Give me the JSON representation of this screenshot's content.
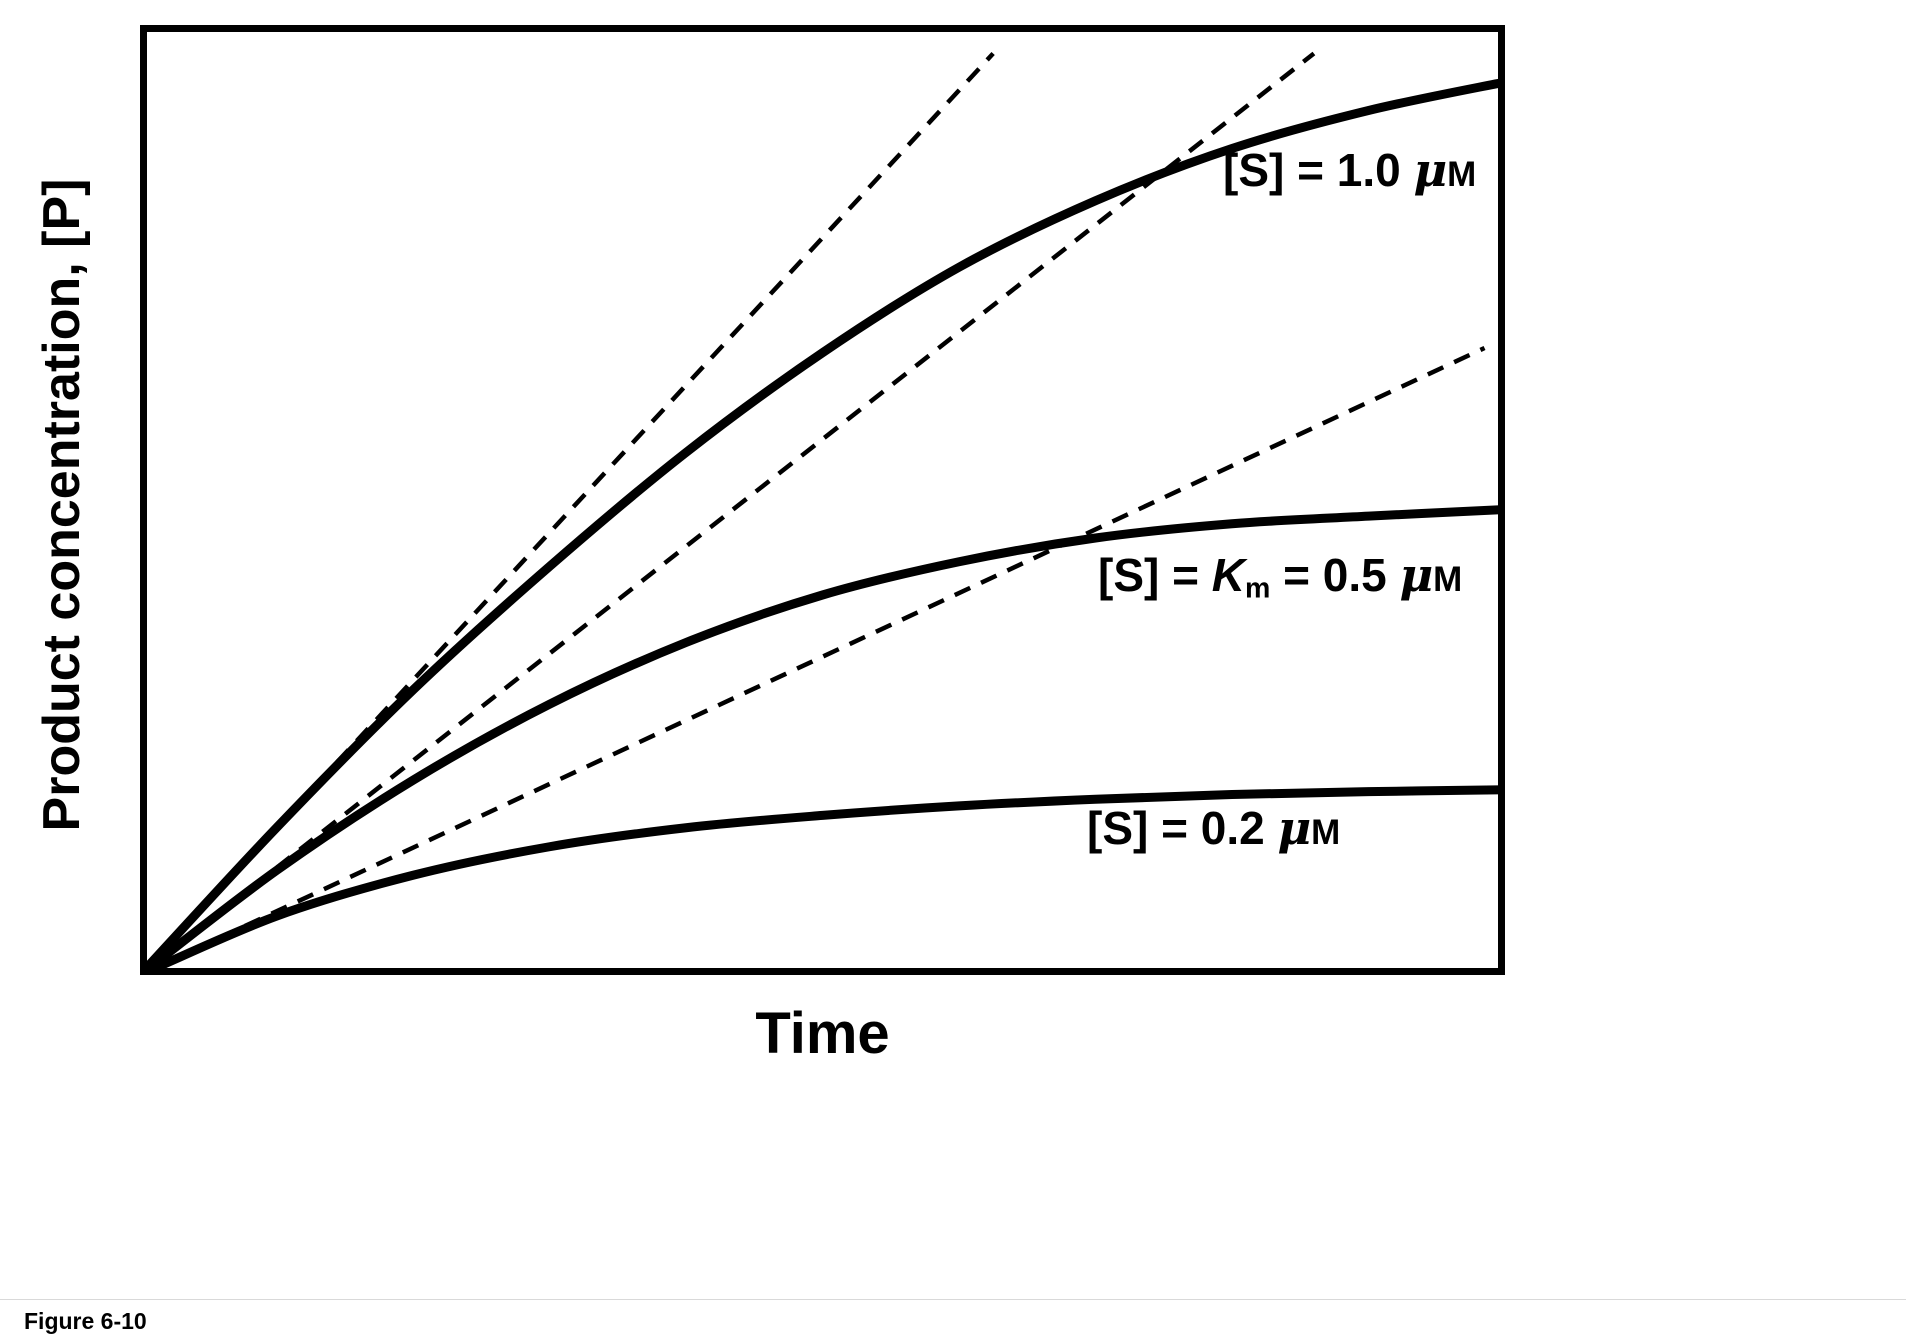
{
  "figure": {
    "caption": "Figure 6-10"
  },
  "colors": {
    "line": "#000000",
    "background": "#ffffff"
  },
  "chart_data": {
    "type": "line",
    "title": "",
    "xlabel": "Time",
    "ylabel": "Product concentration, [P]",
    "x_range": [
      0,
      1
    ],
    "y_range": [
      0,
      1
    ],
    "grid": false,
    "ticks": "none (no numeric tick labels on either axis)",
    "frame": "full rectangular box, thick black border",
    "legend_position": "none (labels annotated next to curves)",
    "series": [
      {
        "name": "progress curve [S] = 1.0 uM",
        "line_style": "solid",
        "x": [
          0,
          0.1,
          0.2,
          0.3,
          0.4,
          0.5,
          0.6,
          0.7,
          0.8,
          0.9,
          1.0
        ],
        "y": [
          0,
          0.155,
          0.3,
          0.43,
          0.55,
          0.655,
          0.745,
          0.815,
          0.87,
          0.91,
          0.94
        ]
      },
      {
        "name": "progress curve [S] = Km = 0.5 uM",
        "line_style": "solid",
        "x": [
          0,
          0.1,
          0.2,
          0.3,
          0.4,
          0.5,
          0.6,
          0.7,
          0.8,
          0.9,
          1.0
        ],
        "y": [
          0,
          0.11,
          0.205,
          0.285,
          0.35,
          0.4,
          0.435,
          0.46,
          0.475,
          0.483,
          0.49
        ]
      },
      {
        "name": "progress curve [S] = 0.2 uM",
        "line_style": "solid",
        "x": [
          0,
          0.1,
          0.2,
          0.3,
          0.4,
          0.5,
          0.6,
          0.7,
          0.8,
          0.9,
          1.0
        ],
        "y": [
          0,
          0.062,
          0.105,
          0.135,
          0.155,
          0.168,
          0.178,
          0.185,
          0.19,
          0.193,
          0.195
        ]
      },
      {
        "name": "initial-rate tangent for [S] = 1.0 uM",
        "line_style": "dashed",
        "x": [
          0,
          0.625
        ],
        "y": [
          0,
          0.97
        ]
      },
      {
        "name": "initial-rate tangent for [S] = 0.5 uM",
        "line_style": "dashed",
        "x": [
          0,
          0.86
        ],
        "y": [
          0,
          0.97
        ]
      },
      {
        "name": "initial-rate tangent for [S] = 0.2 uM",
        "line_style": "dashed",
        "x": [
          0,
          0.985
        ],
        "y": [
          0,
          0.66
        ]
      }
    ],
    "annotations": [
      {
        "parts": {
          "a": "[S] = 1.0 ",
          "mu": "μ",
          "unit": "M"
        }
      },
      {
        "parts": {
          "a": "[S] = ",
          "k": "K",
          "ksub": "m",
          "b": " = 0.5 ",
          "mu": "μ",
          "unit": "M"
        }
      },
      {
        "parts": {
          "a": "[S] = 0.2 ",
          "mu": "μ",
          "unit": "M"
        }
      }
    ]
  }
}
